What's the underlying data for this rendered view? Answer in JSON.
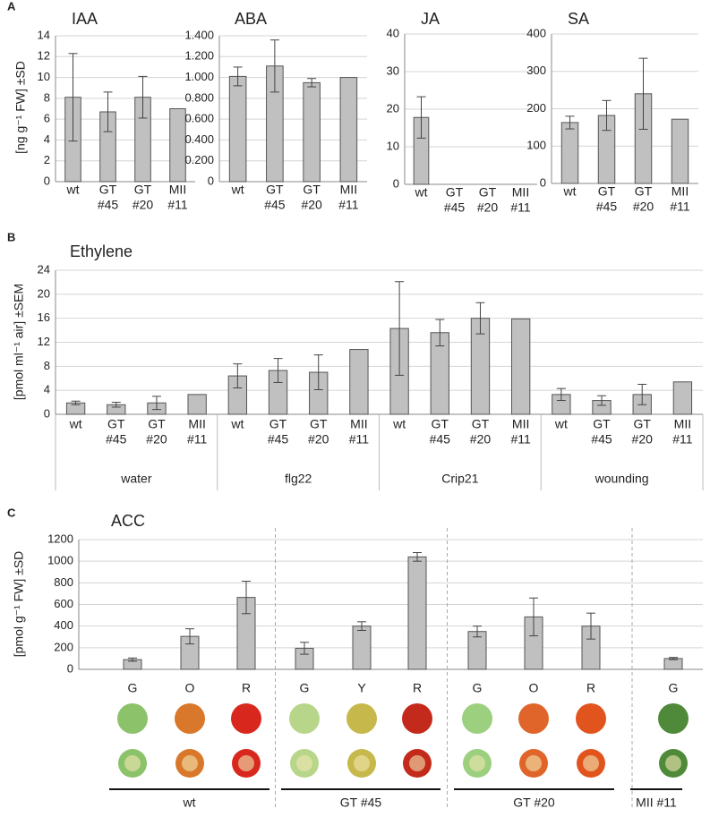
{
  "chart_data": [
    {
      "type": "bar",
      "panel": "A",
      "title": "IAA",
      "ylabel": "[ng g⁻¹ FW] ±SD",
      "categories": [
        [
          "wt"
        ],
        [
          "GT",
          "#45"
        ],
        [
          "GT",
          "#20"
        ],
        [
          "MII",
          "#11"
        ]
      ],
      "values": [
        8.1,
        6.7,
        8.1,
        7.0
      ],
      "errors": [
        4.2,
        1.9,
        2.0,
        null
      ],
      "ylim": [
        0,
        14
      ],
      "yticks": [
        0,
        2,
        4,
        6,
        8,
        10,
        12,
        14
      ],
      "color": "#c0c0c0",
      "grid": true
    },
    {
      "type": "bar",
      "title": "ABA",
      "categories": [
        [
          "wt"
        ],
        [
          "GT",
          "#45"
        ],
        [
          "GT",
          "#20"
        ],
        [
          "MII",
          "#11"
        ]
      ],
      "values": [
        1.01,
        1.11,
        0.95,
        1.0
      ],
      "errors": [
        0.09,
        0.25,
        0.04,
        null
      ],
      "ylim": [
        0,
        1.4
      ],
      "yticks": [
        0,
        {
          "value": 0.2,
          "label": "0.200"
        },
        {
          "value": 0.4,
          "label": "0.400"
        },
        {
          "value": 0.6,
          "label": "0.600"
        },
        {
          "value": 0.8,
          "label": "0.800"
        },
        {
          "value": 1.0,
          "label": "1.000"
        },
        {
          "value": 1.2,
          "label": "1.200"
        },
        {
          "value": 1.4,
          "label": "1.400"
        }
      ],
      "color": "#c0c0c0",
      "grid": true
    },
    {
      "type": "bar",
      "title": "JA",
      "categories": [
        [
          "wt"
        ],
        [
          "GT",
          "#45"
        ],
        [
          "GT",
          "#20"
        ],
        [
          "MII",
          "#11"
        ]
      ],
      "values": [
        17.8,
        0,
        0,
        0
      ],
      "errors": [
        5.5,
        null,
        null,
        null
      ],
      "ylim": [
        0,
        40
      ],
      "yticks": [
        0,
        10,
        20,
        30,
        40
      ],
      "color": "#c0c0c0",
      "grid": true
    },
    {
      "type": "bar",
      "title": "SA",
      "categories": [
        [
          "wt"
        ],
        [
          "GT",
          "#45"
        ],
        [
          "GT",
          "#20"
        ],
        [
          "MII",
          "#11"
        ]
      ],
      "values": [
        163,
        182,
        240,
        172
      ],
      "errors": [
        17,
        40,
        95,
        null
      ],
      "ylim": [
        0,
        400
      ],
      "yticks": [
        0,
        100,
        200,
        300,
        400
      ],
      "color": "#c0c0c0",
      "grid": true
    },
    {
      "type": "bar",
      "panel": "B",
      "title": "Ethylene",
      "ylabel": "[pmol ml⁻¹ air] ±SEM",
      "categories": [
        [
          "wt"
        ],
        [
          "GT",
          "#45"
        ],
        [
          "GT",
          "#20"
        ],
        [
          "MII",
          "#11"
        ],
        [
          "wt"
        ],
        [
          "GT",
          "#45"
        ],
        [
          "GT",
          "#20"
        ],
        [
          "MII",
          "#11"
        ],
        [
          "wt"
        ],
        [
          "GT",
          "#45"
        ],
        [
          "GT",
          "#20"
        ],
        [
          "MII",
          "#11"
        ],
        [
          "wt"
        ],
        [
          "GT",
          "#45"
        ],
        [
          "GT",
          "#20"
        ],
        [
          "MII",
          "#11"
        ]
      ],
      "groups": [
        "water",
        "flg22",
        "Crip21",
        "wounding"
      ],
      "values": [
        1.9,
        1.6,
        1.9,
        3.3,
        6.4,
        7.3,
        7.0,
        10.8,
        14.3,
        13.6,
        16.0,
        15.9,
        3.3,
        2.3,
        3.3,
        5.4
      ],
      "errors": [
        0.3,
        0.4,
        1.1,
        null,
        2.0,
        2.0,
        2.9,
        null,
        7.8,
        2.2,
        2.6,
        null,
        1.0,
        0.8,
        1.7,
        null
      ],
      "ylim": [
        0,
        24
      ],
      "yticks": [
        0,
        4,
        8,
        12,
        16,
        20,
        24
      ],
      "color": "#c0c0c0",
      "grid": true
    },
    {
      "type": "bar",
      "panel": "C",
      "title": "ACC",
      "ylabel": "[pmol g⁻¹ FW] ±SD",
      "categories": [
        [
          "G"
        ],
        [
          "O"
        ],
        [
          "R"
        ],
        [
          "G"
        ],
        [
          "Y"
        ],
        [
          "R"
        ],
        [
          "G"
        ],
        [
          "O"
        ],
        [
          "R"
        ],
        [
          "G"
        ]
      ],
      "groups": [
        "wt",
        "GT #45",
        "GT #20",
        "MII #11"
      ],
      "values": [
        90,
        305,
        665,
        195,
        400,
        1040,
        350,
        485,
        400,
        100
      ],
      "errors": [
        15,
        70,
        150,
        55,
        40,
        40,
        50,
        175,
        120,
        10
      ],
      "ylim": [
        0,
        1200
      ],
      "yticks": [
        0,
        200,
        400,
        600,
        800,
        1000,
        1200
      ],
      "color": "#c0c0c0",
      "grid": true
    }
  ]
}
